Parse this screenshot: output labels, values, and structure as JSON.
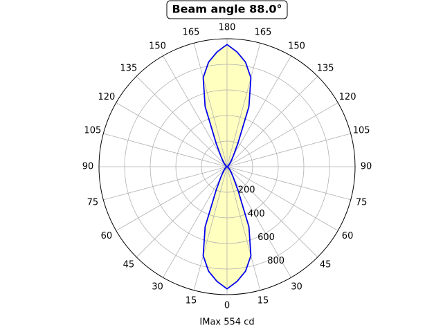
{
  "chart_data": {
    "type": "polar",
    "title": "Beam angle 88.0°",
    "xlabel": "IMax 554 cd",
    "x": [
      0,
      5,
      10,
      15,
      20,
      25,
      30,
      35,
      40,
      45,
      50,
      55,
      60,
      65,
      70,
      75,
      80,
      85,
      90,
      95,
      100,
      105,
      110,
      115,
      120,
      125,
      130,
      135,
      140,
      145,
      150,
      155,
      160,
      165,
      170,
      175,
      180,
      185,
      190,
      195,
      200,
      205,
      210,
      215,
      220,
      225,
      230,
      235,
      240,
      245,
      250,
      255,
      260,
      265,
      270,
      275,
      280,
      285,
      290,
      295,
      300,
      305,
      310,
      315,
      320,
      325,
      330,
      335,
      340,
      345,
      350,
      355,
      360
    ],
    "series": [
      {
        "color": "#0000ee",
        "fill": "#ffffc0",
        "values": [
          955,
          900,
          830,
          720,
          500,
          200,
          100,
          60,
          40,
          25,
          15,
          10,
          5,
          3,
          1,
          0,
          0,
          0,
          0,
          0,
          0,
          0,
          1,
          3,
          5,
          10,
          15,
          25,
          40,
          60,
          100,
          200,
          500,
          720,
          830,
          900,
          955,
          900,
          830,
          720,
          500,
          200,
          100,
          60,
          40,
          25,
          15,
          10,
          5,
          3,
          1,
          0,
          0,
          0,
          0,
          0,
          0,
          0,
          1,
          3,
          5,
          10,
          15,
          25,
          40,
          60,
          100,
          200,
          500,
          720,
          830,
          900,
          955
        ]
      }
    ],
    "ylim": [
      0,
      1000
    ],
    "yticks": [
      200,
      400,
      600,
      800
    ],
    "xticks": [
      0,
      15,
      30,
      45,
      60,
      75,
      90,
      105,
      120,
      135,
      150,
      165,
      180,
      {
        "value": 195,
        "label": "165"
      },
      {
        "value": 210,
        "label": "150"
      },
      {
        "value": 225,
        "label": "135"
      },
      {
        "value": 240,
        "label": "120"
      },
      {
        "value": 255,
        "label": "105"
      },
      {
        "value": 270,
        "label": "90"
      },
      {
        "value": 285,
        "label": "75"
      },
      {
        "value": 300,
        "label": "60"
      },
      {
        "value": 315,
        "label": "45"
      },
      {
        "value": 330,
        "label": "30"
      },
      {
        "value": 345,
        "label": "15"
      }
    ],
    "grid": true
  }
}
